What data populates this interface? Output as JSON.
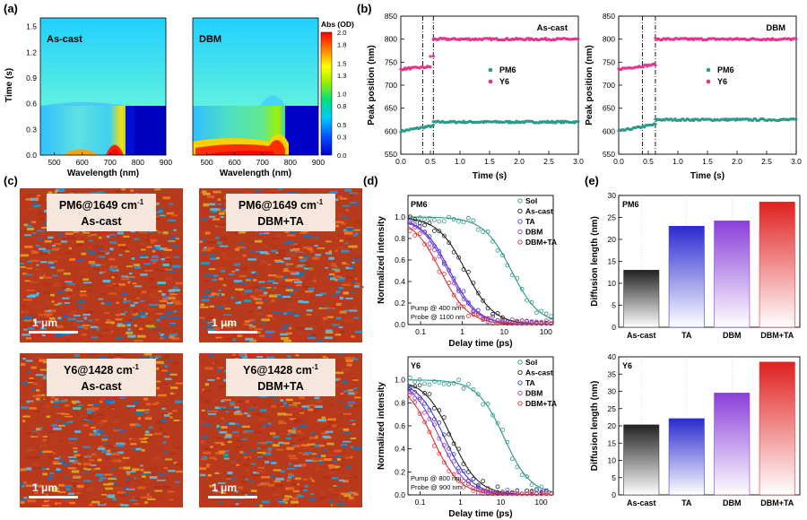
{
  "panel_labels": {
    "a": "(a)",
    "b": "(b)",
    "c": "(c)",
    "d": "(d)",
    "e": "(e)"
  },
  "panel_a": {
    "ylabel": "Time (s)",
    "xlabel": "Wavelength (nm)",
    "yticks": [
      "0.0",
      "0.3",
      "0.6",
      "0.9",
      "1.2",
      "1.5"
    ],
    "xticks": [
      "500",
      "600",
      "700",
      "800",
      "900"
    ],
    "maps": [
      {
        "title": "As-cast"
      },
      {
        "title": "DBM"
      }
    ],
    "colorbar": {
      "title": "Abs (OD)",
      "ticks": [
        "2.0",
        "1.8",
        "1.5",
        "1.3",
        "1.0",
        "0.8",
        "0.5",
        "0.3",
        "0.0"
      ],
      "stops": [
        "#0000cc",
        "#0050ff",
        "#00c8ff",
        "#00e080",
        "#a0f000",
        "#ffff00",
        "#ff8000",
        "#ff0000"
      ]
    }
  },
  "panel_b": {
    "ylabel": "Peak position (nm)",
    "xlabel": "Time (s)",
    "yticks": [
      "550",
      "600",
      "650",
      "700",
      "750",
      "800",
      "850"
    ],
    "xticks": [
      "0.0",
      "0.5",
      "1.0",
      "1.5",
      "2.0",
      "2.5",
      "3.0"
    ],
    "legend": [
      "PM6",
      "Y6"
    ],
    "series_colors": {
      "PM6": "#2a9a8a",
      "Y6": "#e8338a"
    }
  },
  "panel_c": {
    "tiles": [
      {
        "line1": "PM6@1649 cm",
        "sup": "-1",
        "line2": "As-cast"
      },
      {
        "line1": "PM6@1649 cm",
        "sup": "-1",
        "line2": "DBM+TA"
      },
      {
        "line1": "Y6@1428 cm",
        "sup": "-1",
        "line2": "As-cast"
      },
      {
        "line1": "Y6@1428 cm",
        "sup": "-1",
        "line2": "DBM+TA"
      }
    ],
    "scalebar": "1 μm"
  },
  "panel_d": {
    "ylabel": "Normalized intensity",
    "xlabel": "Delay time (ps)",
    "yticks": [
      "0.0",
      "0.2",
      "0.4",
      "0.6",
      "0.8",
      "1.0"
    ],
    "xticks": [
      "0.1",
      "1",
      "10",
      "100"
    ],
    "legend": [
      "Sol",
      "As-cast",
      "TA",
      "DBM",
      "DBM+TA"
    ],
    "colors": {
      "Sol": "#2a9a8a",
      "As-cast": "#222222",
      "TA": "#3b3bd6",
      "DBM": "#8a3fd8",
      "DBM+TA": "#e03030"
    },
    "tags": [
      "PM6",
      "Y6"
    ],
    "notes": [
      [
        "Pump @ 400 nm",
        "Probe @ 1100 nm"
      ],
      [
        "Pump @ 800 nm",
        "Probe @ 900 nm"
      ]
    ]
  },
  "chart_data": [
    {
      "type": "heatmap",
      "title": "As-cast",
      "xlabel": "Wavelength (nm)",
      "ylabel": "Time (s)",
      "xlim": [
        450,
        900
      ],
      "ylim": [
        0,
        1.6
      ],
      "colorbar": "Abs (OD)",
      "clim": [
        0,
        2.0
      ]
    },
    {
      "type": "heatmap",
      "title": "DBM",
      "xlabel": "Wavelength (nm)",
      "ylabel": "Time (s)",
      "xlim": [
        450,
        900
      ],
      "ylim": [
        0,
        1.6
      ],
      "colorbar": "Abs (OD)",
      "clim": [
        0,
        2.0
      ]
    },
    {
      "type": "scatter",
      "title": "As-cast",
      "xlabel": "Time (s)",
      "ylabel": "Peak position (nm)",
      "xlim": [
        0,
        3
      ],
      "ylim": [
        550,
        850
      ],
      "markers_x": [
        0.37,
        0.55
      ],
      "series": [
        {
          "name": "PM6",
          "segments": [
            {
              "t": [
                0,
                0.55
              ],
              "from": 600,
              "to": 612
            },
            {
              "t": [
                0.55,
                3.0
              ],
              "value": 620
            }
          ]
        },
        {
          "name": "Y6",
          "segments": [
            {
              "t": [
                0,
                0.5
              ],
              "from": 735,
              "to": 740
            },
            {
              "t": [
                0.5,
                0.55
              ],
              "value": 762
            },
            {
              "t": [
                0.55,
                3.0
              ],
              "value": 800
            }
          ]
        }
      ]
    },
    {
      "type": "scatter",
      "title": "DBM",
      "xlabel": "Time (s)",
      "ylabel": "Peak position (nm)",
      "xlim": [
        0,
        3
      ],
      "ylim": [
        550,
        850
      ],
      "markers_x": [
        0.4,
        0.62
      ],
      "series": [
        {
          "name": "PM6",
          "segments": [
            {
              "t": [
                0,
                0.62
              ],
              "from": 600,
              "to": 615
            },
            {
              "t": [
                0.62,
                3.0
              ],
              "value": 625
            }
          ]
        },
        {
          "name": "Y6",
          "segments": [
            {
              "t": [
                0,
                0.62
              ],
              "from": 735,
              "to": 745
            },
            {
              "t": [
                0.62,
                3.0
              ],
              "value": 800
            }
          ]
        }
      ]
    },
    {
      "type": "scatter",
      "title": "PM6",
      "xlabel": "Delay time (ps)",
      "ylabel": "Normalized intensity",
      "xscale": "log",
      "xlim": [
        0.05,
        150
      ],
      "ylim": [
        0,
        1.2
      ],
      "series": [
        {
          "name": "Sol",
          "tau_ps": 15
        },
        {
          "name": "As-cast",
          "tau_ps": 1.2
        },
        {
          "name": "TA",
          "tau_ps": 0.5
        },
        {
          "name": "DBM",
          "tau_ps": 0.45
        },
        {
          "name": "DBM+TA",
          "tau_ps": 0.3
        }
      ]
    },
    {
      "type": "scatter",
      "title": "Y6",
      "xlabel": "Delay time (ps)",
      "ylabel": "Normalized intensity",
      "xscale": "log",
      "xlim": [
        0.05,
        200
      ],
      "ylim": [
        0,
        1.2
      ],
      "series": [
        {
          "name": "Sol",
          "tau_ps": 12
        },
        {
          "name": "As-cast",
          "tau_ps": 0.6
        },
        {
          "name": "TA",
          "tau_ps": 0.4
        },
        {
          "name": "DBM",
          "tau_ps": 0.3
        },
        {
          "name": "DBM+TA",
          "tau_ps": 0.2
        }
      ]
    },
    {
      "type": "bar",
      "title": "PM6",
      "xlabel": "",
      "ylabel": "Diffusion length (nm)",
      "categories": [
        "As-cast",
        "TA",
        "DBM",
        "DBM+TA"
      ],
      "values": [
        13,
        23,
        24.2,
        28.5
      ],
      "ylim": [
        0,
        30
      ],
      "yticks": [
        "0",
        "5",
        "10",
        "15",
        "20",
        "25",
        "30"
      ],
      "colors": [
        "#3a3a3a",
        "#3b3bd6",
        "#8a3fd8",
        "#e03030"
      ]
    },
    {
      "type": "bar",
      "title": "Y6",
      "xlabel": "",
      "ylabel": "Diffusion length (nm)",
      "categories": [
        "As-cast",
        "TA",
        "DBM",
        "DBM+TA"
      ],
      "values": [
        20.3,
        22.1,
        29.5,
        38.5
      ],
      "ylim": [
        0,
        40
      ],
      "yticks": [
        "0",
        "5",
        "10",
        "15",
        "20",
        "25",
        "30",
        "35",
        "40"
      ],
      "colors": [
        "#3a3a3a",
        "#3b3bd6",
        "#8a3fd8",
        "#e03030"
      ]
    }
  ]
}
